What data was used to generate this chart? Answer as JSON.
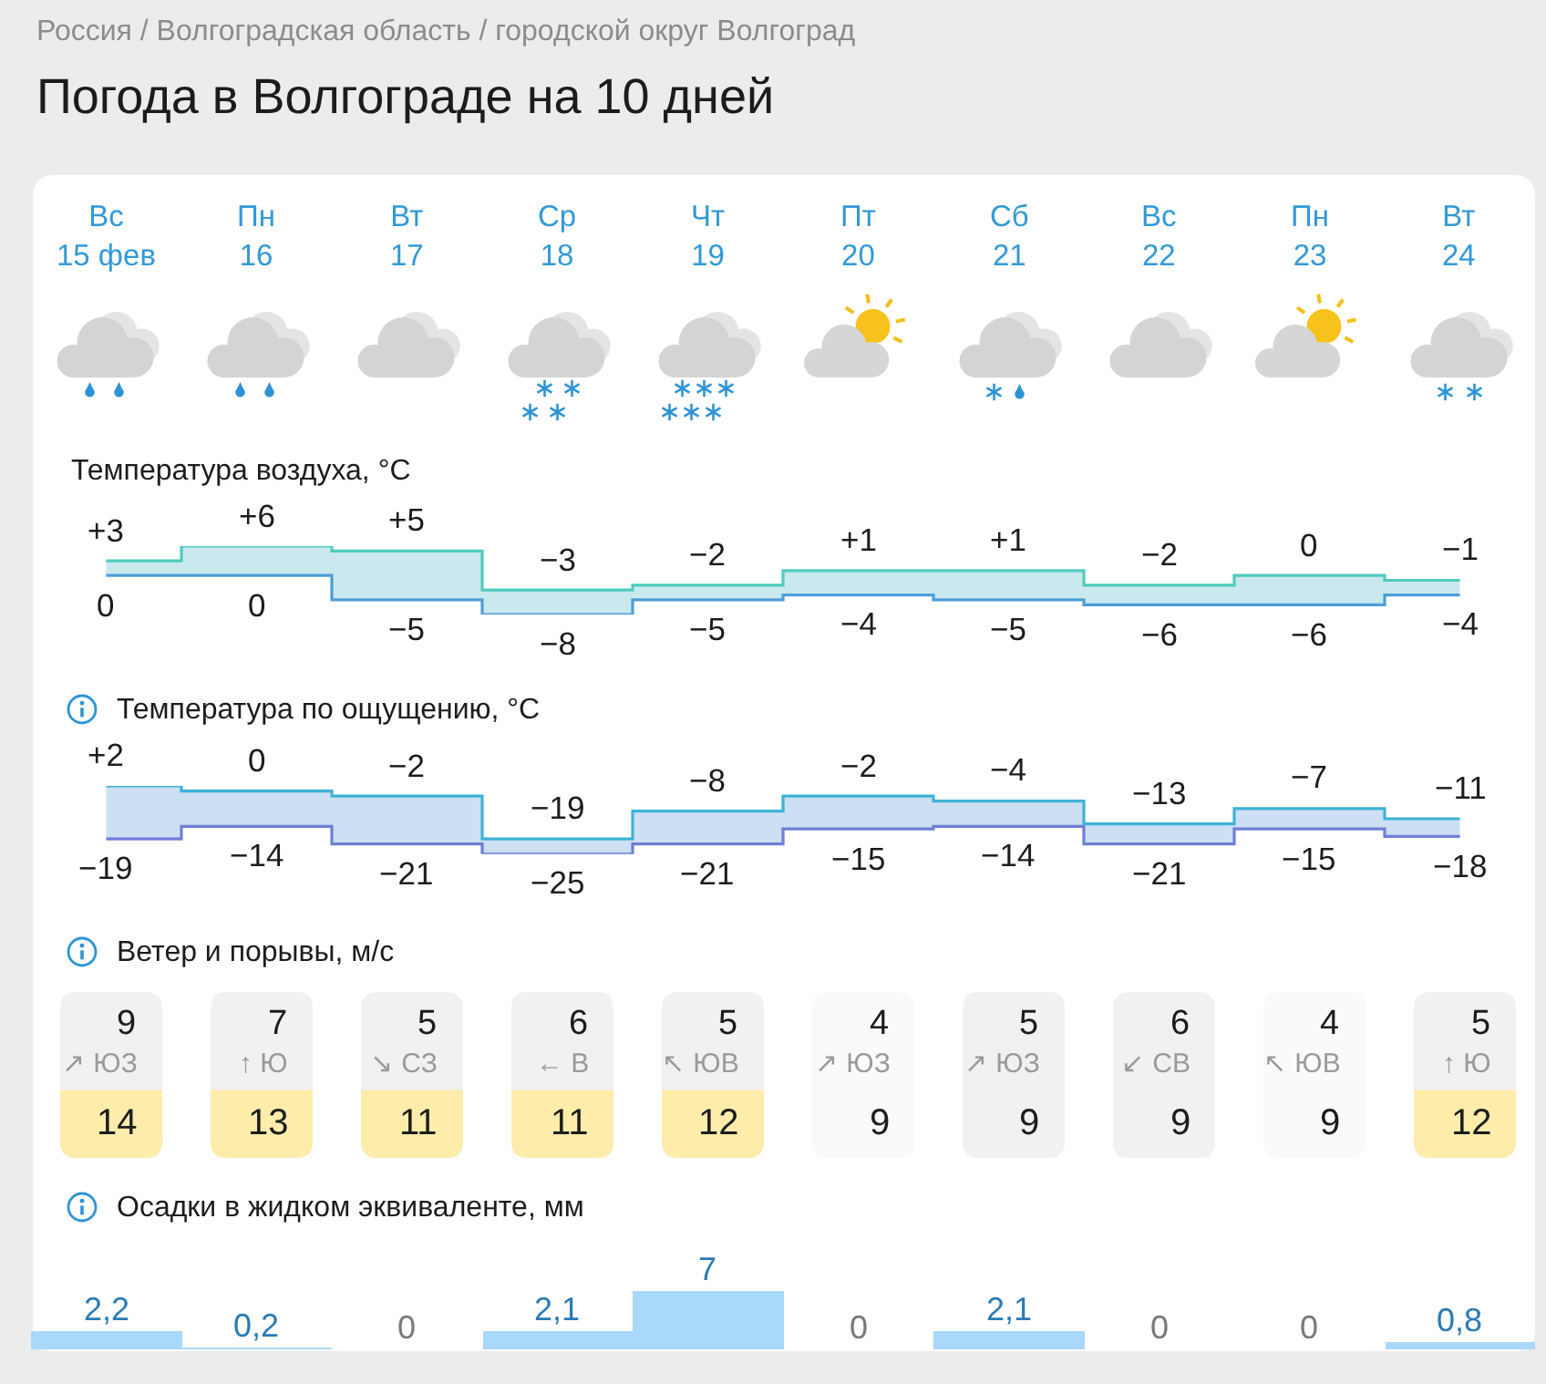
{
  "chart_data": [
    {
      "type": "other",
      "title": "Погода в Волгограде на 10 дней",
      "subtitle": "Россия / Волгоградская область / городской округ Волгоград"
    },
    {
      "type": "step",
      "title": "Температура воздуха, °C",
      "categories": [
        "Вс\n15 фев",
        "Пн\n16",
        "Вт\n17",
        "Ср\n18",
        "Чт\n19",
        "Пт\n20",
        "Сб\n21",
        "Вс\n22",
        "Пн\n23",
        "Вт\n24"
      ],
      "series": [
        {
          "color": "#4fccbb",
          "values": [
            3,
            6,
            5,
            -3,
            -2,
            1,
            1,
            -2,
            0,
            -1
          ],
          "value_labels": [
            "+3",
            "+6",
            "+5",
            "−3",
            "−2",
            "+1",
            "+1",
            "−2",
            "0",
            "−1"
          ],
          "lower": [
            0,
            0,
            -5,
            -8,
            -5,
            -4,
            -5,
            -6,
            -6,
            -4
          ],
          "upper": [
            3,
            6,
            5,
            -3,
            -2,
            1,
            1,
            -2,
            0,
            -1
          ]
        },
        {
          "color": "#4c9fd8",
          "values": [
            0,
            0,
            -5,
            -8,
            -5,
            -4,
            -5,
            -6,
            -6,
            -4
          ],
          "value_labels": [
            "0",
            "0",
            "−5",
            "−8",
            "−5",
            "−4",
            "−5",
            "−6",
            "−6",
            "−4"
          ]
        }
      ]
    },
    {
      "type": "step",
      "title": "Температура по ощущению, °C",
      "categories": [
        null,
        null,
        null,
        null,
        null,
        null,
        null,
        null,
        null,
        null
      ],
      "series": [
        {
          "color": "#3fb2d6",
          "values": [
            2,
            0,
            -2,
            -19,
            -8,
            -2,
            -4,
            -13,
            -7,
            -11
          ],
          "value_labels": [
            "+2",
            "0",
            "−2",
            "−19",
            "−8",
            "−2",
            "−4",
            "−13",
            "−7",
            "−11"
          ],
          "lower": [
            -19,
            -14,
            -21,
            -25,
            -21,
            -15,
            -14,
            -21,
            -15,
            -18
          ],
          "upper": [
            2,
            0,
            -2,
            -19,
            -8,
            -2,
            -4,
            -13,
            -7,
            -11
          ]
        },
        {
          "color": "#6f7ed6",
          "values": [
            -19,
            -14,
            -21,
            -25,
            -21,
            -15,
            -14,
            -21,
            -15,
            -18
          ],
          "value_labels": [
            "−19",
            "−14",
            "−21",
            "−25",
            "−21",
            "−15",
            "−14",
            "−21",
            "−15",
            "−18"
          ]
        }
      ]
    },
    {
      "type": "other",
      "title": "Ветер и порывы, м/с",
      "categories": [
        "↗ ЮЗ",
        "↑ Ю",
        "↘ СЗ",
        "← В",
        "↖ ЮВ",
        "↗ ЮЗ",
        "↗ ЮЗ",
        "↙ СВ",
        "↖ ЮВ",
        "↑ Ю"
      ],
      "data_labels": true,
      "series": [
        {
          "values": [
            9,
            7,
            5,
            6,
            5,
            4,
            5,
            6,
            4,
            5
          ],
          "colors": [
            "#f1f1f1",
            "#f1f1f1",
            "#f1f1f1",
            "#f1f1f1",
            "#f1f1f1",
            "#fafafa",
            "#f1f1f1",
            "#f1f1f1",
            "#fafafa",
            "#f1f1f1"
          ]
        },
        {
          "values": [
            14,
            13,
            11,
            11,
            12,
            9,
            9,
            9,
            9,
            12
          ],
          "colors": [
            "#fdecaa",
            "#fdecaa",
            "#fdecaa",
            "#fdecaa",
            "#fdecaa",
            "#fafafa",
            "#f1f1f1",
            "#f1f1f1",
            "#fafafa",
            "#fdecaa"
          ]
        }
      ]
    },
    {
      "type": "bar",
      "title": "Осадки в жидком эквиваленте, мм",
      "categories": [
        null,
        null,
        null,
        null,
        null,
        null,
        null,
        null,
        null,
        null
      ],
      "color": "#a9d8fb",
      "values": [
        2.2,
        0.2,
        0,
        2.1,
        7,
        0,
        2.1,
        0,
        0,
        0.8
      ],
      "value_labels": [
        "2,2",
        "0,2",
        "0",
        "2,1",
        "7",
        "0",
        "2,1",
        "0",
        "0",
        "0,8"
      ]
    }
  ]
}
